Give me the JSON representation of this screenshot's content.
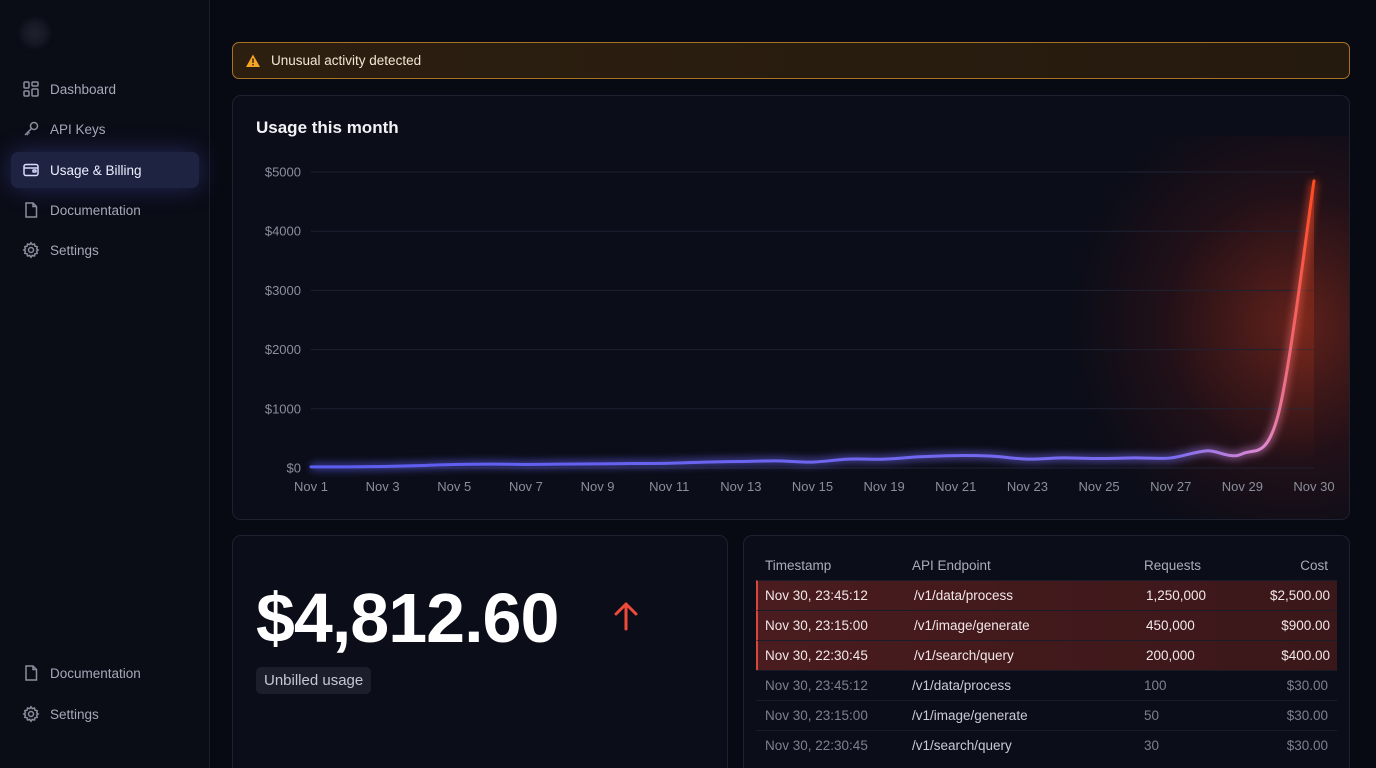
{
  "sidebar": {
    "top_items": [
      {
        "label": "Dashboard",
        "icon": "grid-icon",
        "active": false
      },
      {
        "label": "API Keys",
        "icon": "key-icon",
        "active": false
      },
      {
        "label": "Usage & Billing",
        "icon": "wallet-icon",
        "active": true
      },
      {
        "label": "Documentation",
        "icon": "document-icon",
        "active": false
      },
      {
        "label": "Settings",
        "icon": "gear-icon",
        "active": false
      }
    ],
    "bottom_items": [
      {
        "label": "Documentation",
        "icon": "document-icon"
      },
      {
        "label": "Settings",
        "icon": "gear-icon"
      }
    ]
  },
  "alert": {
    "text": "Unusual activity detected",
    "icon": "warning-icon",
    "color": "#f5a524"
  },
  "chart": {
    "title": "Usage this month"
  },
  "chart_data": {
    "type": "line",
    "title": "Usage this month",
    "xlabel": "",
    "ylabel": "",
    "y_ticks": [
      "$0",
      "$1000",
      "$2000",
      "$3000",
      "$4000",
      "$5000"
    ],
    "ylim": [
      0,
      5000
    ],
    "x_ticks": [
      "Nov 1",
      "Nov 3",
      "Nov 5",
      "Nov 7",
      "Nov 9",
      "Nov 11",
      "Nov 13",
      "Nov 15",
      "Nov 19",
      "Nov 21",
      "Nov 23",
      "Nov 25",
      "Nov 27",
      "Nov 29",
      "Nov 30"
    ],
    "grid": true,
    "series": [
      {
        "x": [
          "Nov 1",
          "Nov 2",
          "Nov 3",
          "Nov 4",
          "Nov 5",
          "Nov 6",
          "Nov 7",
          "Nov 8",
          "Nov 9",
          "Nov 10",
          "Nov 11",
          "Nov 12",
          "Nov 13",
          "Nov 14",
          "Nov 15",
          "Nov 16",
          "Nov 19",
          "Nov 20",
          "Nov 21",
          "Nov 22",
          "Nov 23",
          "Nov 24",
          "Nov 25",
          "Nov 26",
          "Nov 27",
          "Nov 28",
          "Nov 29",
          "Nov 30 AM",
          "Nov 30"
        ],
        "values": [
          20,
          20,
          25,
          40,
          60,
          65,
          60,
          65,
          70,
          75,
          80,
          100,
          110,
          120,
          100,
          150,
          150,
          190,
          210,
          200,
          150,
          170,
          160,
          170,
          170,
          290,
          240,
          900,
          4850
        ]
      }
    ],
    "line_colors": [
      "#5b5cf0",
      "#ff4a1f"
    ]
  },
  "total": {
    "amount": "$4,812.60",
    "label": "Unbilled usage",
    "trend_icon": "arrow-up-icon",
    "trend_color": "#ef4a3a"
  },
  "table": {
    "headers": [
      "Timestamp",
      "API Endpoint",
      "Requests",
      "Cost"
    ],
    "rows": [
      {
        "timestamp": "Nov 30, 23:45:12",
        "endpoint": "/v1/data/process",
        "requests": "1,250,000",
        "cost": "$2,500.00",
        "flagged": true
      },
      {
        "timestamp": "Nov 30, 23:15:00",
        "endpoint": "/v1/image/generate",
        "requests": "450,000",
        "cost": "$900.00",
        "flagged": true
      },
      {
        "timestamp": "Nov 30, 22:30:45",
        "endpoint": "/v1/search/query",
        "requests": "200,000",
        "cost": "$400.00",
        "flagged": true
      },
      {
        "timestamp": "Nov 30, 23:45:12",
        "endpoint": "/v1/data/process",
        "requests": "100",
        "cost": "$30.00",
        "flagged": false
      },
      {
        "timestamp": "Nov 30, 23:15:00",
        "endpoint": "/v1/image/generate",
        "requests": "50",
        "cost": "$30.00",
        "flagged": false
      },
      {
        "timestamp": "Nov 30, 22:30:45",
        "endpoint": "/v1/search/query",
        "requests": "30",
        "cost": "$30.00",
        "flagged": false
      }
    ]
  }
}
